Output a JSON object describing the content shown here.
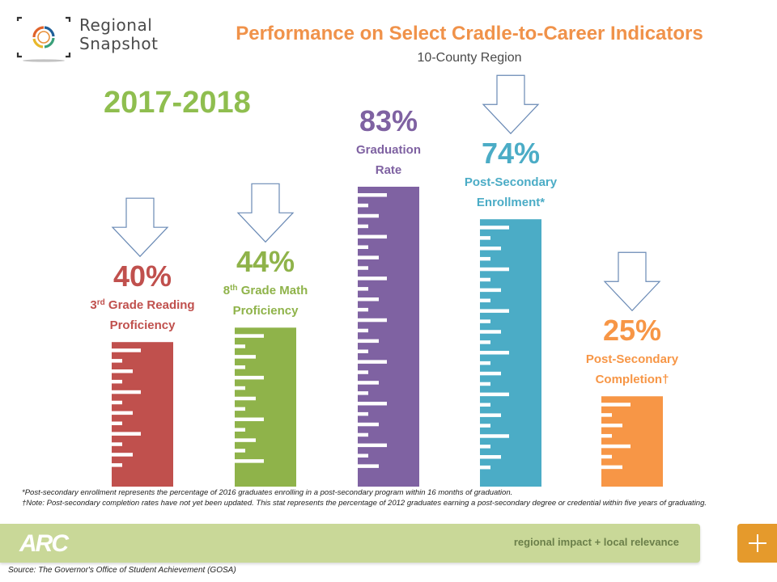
{
  "header": {
    "logo_line1": "Regional",
    "logo_line2": "Snapshot",
    "title": "Performance on Select Cradle-to-Career Indicators",
    "subtitle": "10-County Region",
    "year": "2017-2018"
  },
  "chart_data": {
    "type": "bar",
    "title": "Performance on Select Cradle-to-Career Indicators",
    "subtitle": "10-County Region",
    "period": "2017-2018",
    "ylim": [
      0,
      100
    ],
    "unit": "%",
    "categories": [
      "3rd Grade Reading Proficiency",
      "8th Grade Math Proficiency",
      "Graduation Rate",
      "Post-Secondary Enrollment*",
      "Post-Secondary Completion†"
    ],
    "values": [
      40,
      44,
      83,
      74,
      25
    ],
    "bars": [
      {
        "value": 40,
        "value_label": "40%",
        "label_lines": [
          {
            "pre": "3",
            "sup": "rd",
            "post": " Grade Reading"
          },
          {
            "pre": "Proficiency",
            "sup": "",
            "post": ""
          }
        ],
        "color": "#c0504d",
        "arrow": "down"
      },
      {
        "value": 44,
        "value_label": "44%",
        "label_lines": [
          {
            "pre": "8",
            "sup": "th",
            "post": " Grade Math"
          },
          {
            "pre": "Proficiency",
            "sup": "",
            "post": ""
          }
        ],
        "color": "#8fb34a",
        "arrow": "down"
      },
      {
        "value": 83,
        "value_label": "83%",
        "label_lines": [
          {
            "pre": "Graduation",
            "sup": "",
            "post": ""
          },
          {
            "pre": "Rate",
            "sup": "",
            "post": ""
          }
        ],
        "color": "#7f62a2",
        "arrow": "none"
      },
      {
        "value": 74,
        "value_label": "74%",
        "label_lines": [
          {
            "pre": "Post-Secondary",
            "sup": "",
            "post": ""
          },
          {
            "pre": "Enrollment*",
            "sup": "",
            "post": ""
          }
        ],
        "color": "#4bacc6",
        "arrow": "down"
      },
      {
        "value": 25,
        "value_label": "25%",
        "label_lines": [
          {
            "pre": "Post-Secondary",
            "sup": "",
            "post": ""
          },
          {
            "pre": "Completion†",
            "sup": "",
            "post": ""
          }
        ],
        "color": "#f79646",
        "arrow": "down"
      }
    ]
  },
  "footnotes": {
    "enrollment": "*Post-secondary enrollment represents the percentage of 2016 graduates enrolling in a post-secondary program  within 16 months of graduation.",
    "completion": "†Note: Post-secondary completion rates have not yet been updated. This stat represents the percentage of 2012 graduates earning a post-secondary degree or credential within five years of graduating."
  },
  "footer": {
    "org_logo": "ARC",
    "tagline": "regional impact + local relevance",
    "plus_button": "+",
    "source": "Source: The Governor's Office of Student Achievement (GOSA)"
  },
  "colors": {
    "title": "#f0924a",
    "year": "#8fbe4f",
    "band": "#c9d898",
    "plus": "#e59a2c",
    "arrow_stroke": "#6a8ab5"
  }
}
